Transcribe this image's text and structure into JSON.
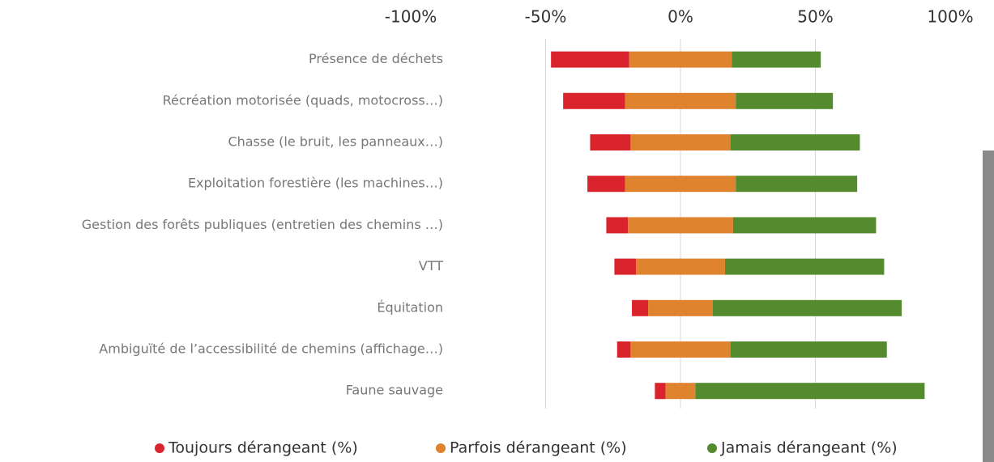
{
  "chart_data": {
    "type": "diverging-bar",
    "categories": [
      "Présence de déchets",
      "Récréation motorisée (quads, motocross…)",
      "Chasse (le bruit, les panneaux…)",
      "Exploitation forestière (les machines…)",
      "Gestion des forêts publiques (entretien des chemins …)",
      "VTT",
      "Équitation",
      "Ambiguïté de l’accessibilité de chemins (affichage…)",
      "Faune sauvage"
    ],
    "series": [
      {
        "name": "Toujours dérangeant (%)",
        "color": "#d9232d",
        "values": [
          29,
          23,
          15,
          14,
          8,
          8,
          6,
          5,
          4
        ]
      },
      {
        "name": "Parfois dérangeant (%)",
        "color": "#e0832f",
        "values": [
          38,
          41,
          37,
          41,
          39,
          33,
          24,
          37,
          11
        ]
      },
      {
        "name": "Jamais dérangeant (%)",
        "color": "#558b2f",
        "values": [
          33,
          36,
          48,
          45,
          53,
          59,
          70,
          58,
          85
        ]
      }
    ],
    "xlim": [
      -100,
      100
    ],
    "xticks": [
      {
        "value": -100,
        "label": "-100%"
      },
      {
        "value": -50,
        "label": "-50%"
      },
      {
        "value": 0,
        "label": "0%"
      },
      {
        "value": 50,
        "label": "50%"
      },
      {
        "value": 100,
        "label": "100%"
      }
    ],
    "grid": true
  }
}
